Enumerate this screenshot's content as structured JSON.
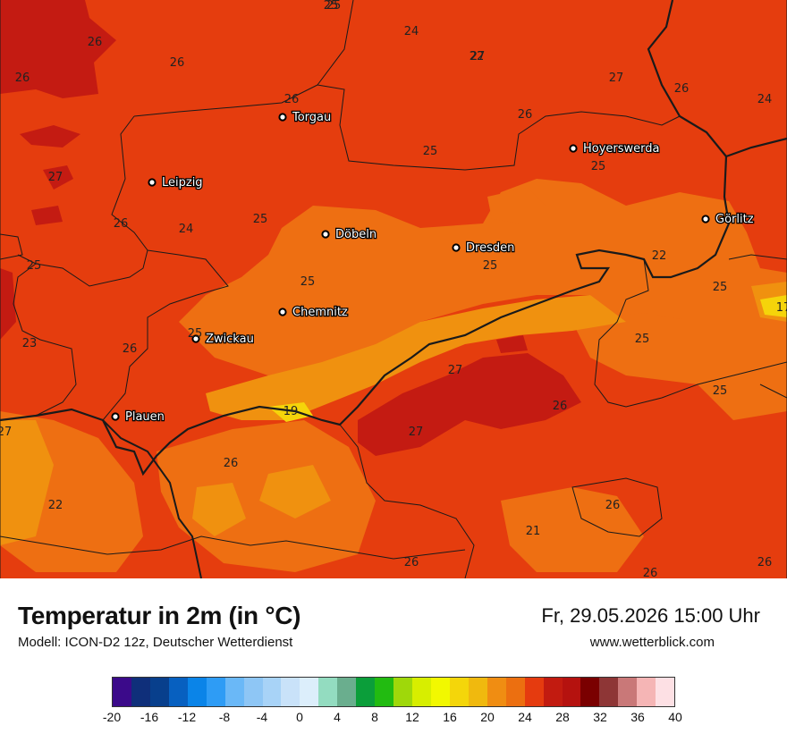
{
  "map": {
    "cities": [
      {
        "name": "Torgau"
      },
      {
        "name": "Hoyerswerda"
      },
      {
        "name": "Leipzig"
      },
      {
        "name": "Döbeln"
      },
      {
        "name": "Dresden"
      },
      {
        "name": "Görlitz"
      },
      {
        "name": "Chemnitz"
      },
      {
        "name": "Zwickau"
      },
      {
        "name": "Plauen"
      }
    ],
    "temperature_labels": [
      "25",
      "24",
      "26",
      "27",
      "26",
      "26",
      "27",
      "26",
      "24",
      "26",
      "26",
      "25",
      "27",
      "25",
      "24",
      "26",
      "25",
      "25",
      "25",
      "25",
      "22",
      "25",
      "25",
      "25",
      "23",
      "26",
      "27",
      "17",
      "25",
      "26",
      "27",
      "27",
      "22",
      "19",
      "26",
      "26",
      "21",
      "26",
      "26",
      "26",
      "22",
      "25"
    ]
  },
  "footer": {
    "title": "Temperatur in 2m (in °C)",
    "subtitle": "Modell: ICON-D2 12z, Deutscher Wetterdienst",
    "datetime": "Fr, 29.05.2026 15:00 Uhr",
    "website": "www.wetterblick.com"
  },
  "legend": {
    "colors": [
      "#3b0a8a",
      "#0f2f7a",
      "#083f8c",
      "#0760c0",
      "#0a84e8",
      "#2e9cf5",
      "#6ab8f7",
      "#8ec6f5",
      "#a8d3f7",
      "#c9e2f9",
      "#dceefb",
      "#93dcc0",
      "#6aae8e",
      "#0b9e3a",
      "#22bb11",
      "#9fd80a",
      "#d7ee00",
      "#f2f800",
      "#f4d60a",
      "#f0b90e",
      "#f08d12",
      "#ec6f10",
      "#e53b0f",
      "#c21b10",
      "#b5120f",
      "#7a0000",
      "#8e3636",
      "#c97878",
      "#f5b5b5",
      "#fde0e4"
    ],
    "ticks": [
      "-20",
      "-16",
      "-12",
      "-8",
      "-4",
      "0",
      "4",
      "8",
      "12",
      "16",
      "20",
      "24",
      "28",
      "32",
      "36",
      "40"
    ]
  },
  "colors": {
    "temp_22_24": "#e53d0e",
    "temp_24_26": "#ee6f12",
    "temp_26_28": "#c41b12",
    "temp_20_22": "#f0910f",
    "temp_18_20": "#f5d40a",
    "borders": "#1a1a1a"
  }
}
